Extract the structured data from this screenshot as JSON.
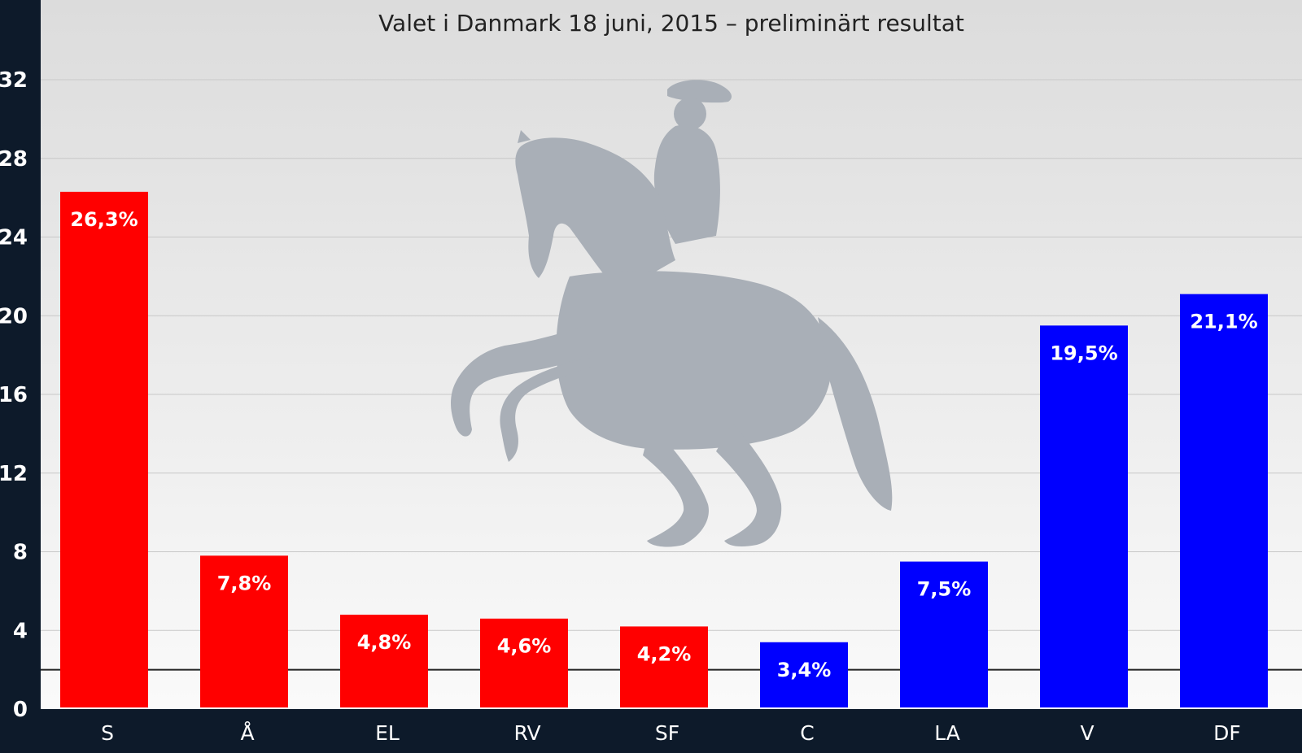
{
  "chart_data": {
    "type": "bar",
    "title": "Valet i Danmark 18 juni, 2015 – preliminärt resultat",
    "xlabel": "",
    "ylabel": "",
    "categories": [
      "S",
      "Å",
      "EL",
      "RV",
      "SF",
      "C",
      "LA",
      "V",
      "DF"
    ],
    "values": [
      26.3,
      7.8,
      4.8,
      4.6,
      4.2,
      3.4,
      7.5,
      19.5,
      21.1
    ],
    "value_labels": [
      "26,3%",
      "7,8%",
      "4,8%",
      "4,6%",
      "4,2%",
      "3,4%",
      "7,5%",
      "19,5%",
      "21,1%"
    ],
    "bar_colors": [
      "#ff0000",
      "#ff0000",
      "#ff0000",
      "#ff0000",
      "#ff0000",
      "#0000ff",
      "#0000ff",
      "#0000ff",
      "#0000ff"
    ],
    "ylim": [
      0,
      36
    ],
    "yticks": [
      0,
      4,
      8,
      12,
      16,
      20,
      24,
      28,
      32
    ],
    "threshold_line": 2,
    "grid": true,
    "legend": "none"
  },
  "colors": {
    "frame": "#0d1a2a",
    "plot_bg_top": "#dcdcdc",
    "plot_bg_bottom": "#fafafa",
    "gridline": "#c8c8c8",
    "threshold": "#222222",
    "silhouette": "#a9afb7"
  },
  "watermark_icon": "horse-rider-silhouette-icon"
}
